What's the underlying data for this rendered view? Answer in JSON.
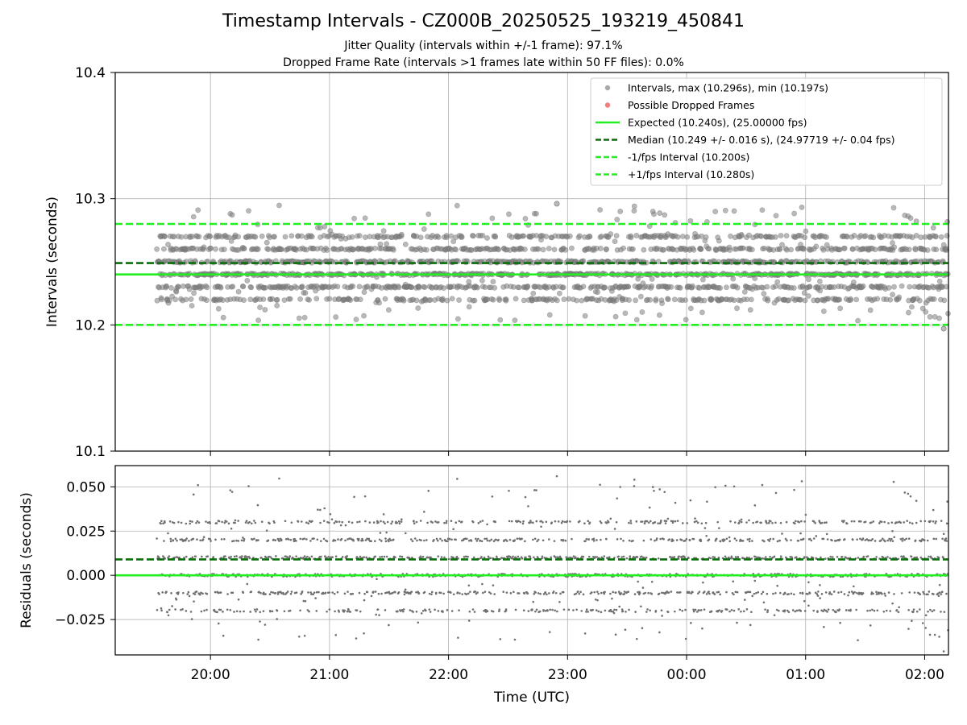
{
  "chart_data": [
    {
      "type": "scatter",
      "panel": "top",
      "title": "Timestamp Intervals - CZ000B_20250525_193219_450841",
      "subtitle_lines": [
        "Jitter Quality (intervals within +/-1 frame): 97.1%",
        "Dropped Frame Rate (intervals >1 frames late within 50 FF files): 0.0%"
      ],
      "ylabel": "Intervals (seconds)",
      "ylim": [
        10.1,
        10.4
      ],
      "yticks": [
        10.1,
        10.2,
        10.3,
        10.4
      ],
      "ytick_labels": [
        "10.1",
        "10.2",
        "10.3",
        "10.4"
      ],
      "xlim_hours": [
        19.2,
        26.2
      ],
      "xticks_hours": [
        20,
        21,
        22,
        23,
        24,
        25,
        26
      ],
      "xtick_labels": [
        "20:00",
        "21:00",
        "22:00",
        "23:00",
        "00:00",
        "01:00",
        "02:00"
      ],
      "grid": true,
      "legend_position": "top-right",
      "series": [
        {
          "name": "Intervals, max (10.296s), min (10.197s)",
          "kind": "scatter",
          "color": "#808080",
          "x_range_hours": [
            19.55,
            26.2
          ],
          "count": 2300,
          "levels": [
            10.22,
            10.23,
            10.24,
            10.25,
            10.26,
            10.27
          ],
          "max": 10.296,
          "min": 10.197
        },
        {
          "name": "Possible Dropped Frames",
          "kind": "scatter",
          "color": "#f07070",
          "count": 0
        },
        {
          "name": "Expected (10.240s), (25.00000 fps)",
          "kind": "hline",
          "value": 10.24,
          "color": "#22ee22",
          "style": "solid"
        },
        {
          "name": "Median (10.249 +/- 0.016 s), (24.97719 +/- 0.04 fps)",
          "kind": "hline",
          "value": 10.249,
          "color": "#0b6e0b",
          "style": "dashed"
        },
        {
          "name": "-1/fps Interval (10.200s)",
          "kind": "hline",
          "value": 10.2,
          "color": "#22ee22",
          "style": "dashed"
        },
        {
          "name": "+1/fps Interval (10.280s)",
          "kind": "hline",
          "value": 10.28,
          "color": "#22ee22",
          "style": "dashed"
        }
      ]
    },
    {
      "type": "scatter",
      "panel": "bottom",
      "xlabel": "Time (UTC)",
      "ylabel": "Residuals (seconds)",
      "ylim": [
        -0.045,
        0.062
      ],
      "yticks": [
        -0.025,
        0.0,
        0.025,
        0.05
      ],
      "ytick_labels": [
        "−0.025",
        "0.000",
        "0.025",
        "0.050"
      ],
      "xlim_hours": [
        19.2,
        26.2
      ],
      "xticks_hours": [
        20,
        21,
        22,
        23,
        24,
        25,
        26
      ],
      "xtick_labels": [
        "20:00",
        "21:00",
        "22:00",
        "23:00",
        "00:00",
        "01:00",
        "02:00"
      ],
      "grid": true,
      "series": [
        {
          "name": "Residuals",
          "kind": "scatter",
          "color": "#707070",
          "count": 2300,
          "levels": [
            -0.02,
            -0.01,
            0.0,
            0.01,
            0.02,
            0.03
          ],
          "max": 0.056,
          "min": -0.043
        },
        {
          "name": "Expected",
          "kind": "hline",
          "value": 0.0,
          "color": "#22ee22",
          "style": "solid"
        },
        {
          "name": "Median",
          "kind": "hline",
          "value": 0.009,
          "color": "#0b6e0b",
          "style": "dashed"
        }
      ]
    }
  ]
}
